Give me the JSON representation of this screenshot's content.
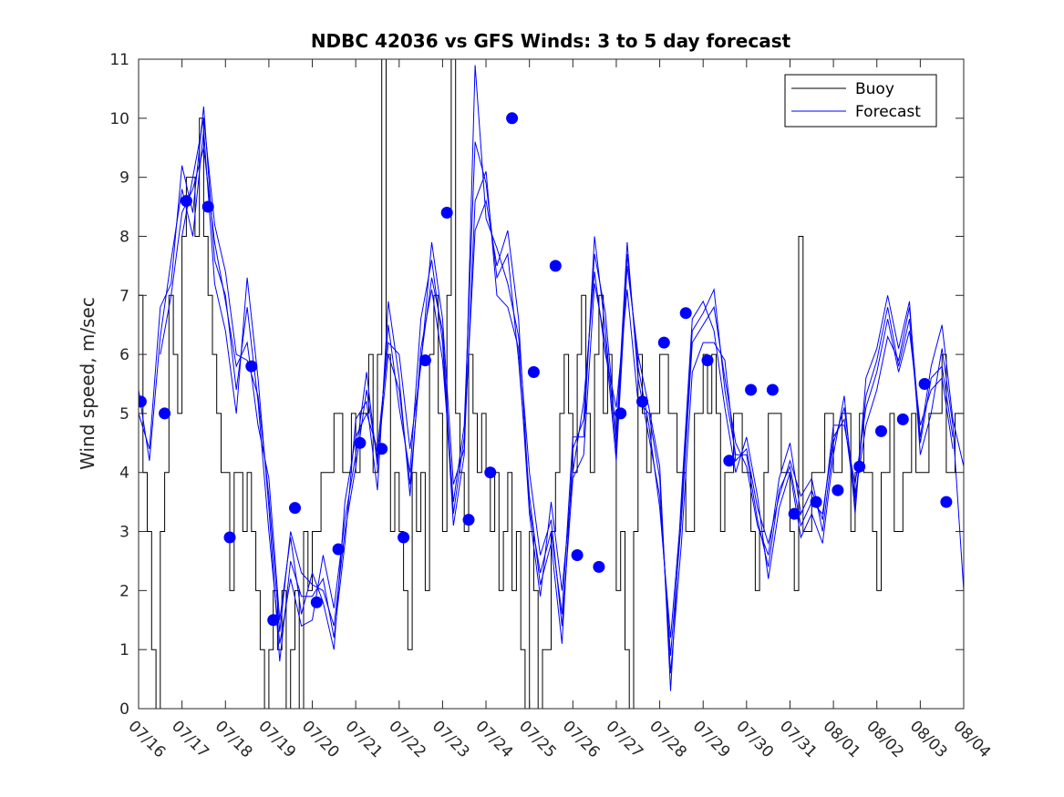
{
  "chart_data": {
    "type": "line",
    "title": "NDBC 42036 vs GFS Winds: 3 to 5 day forecast",
    "xlabel": "",
    "ylabel": "Wind speed, m/sec",
    "ylim": [
      0,
      11
    ],
    "xlim": [
      "07/16",
      "08/04"
    ],
    "grid": false,
    "legend_position": "top-right",
    "x_tick_labels": [
      "07/16",
      "07/17",
      "07/18",
      "07/19",
      "07/20",
      "07/21",
      "07/22",
      "07/23",
      "07/24",
      "07/25",
      "07/26",
      "07/27",
      "07/28",
      "07/29",
      "07/30",
      "07/31",
      "08/01",
      "08/02",
      "08/03",
      "08/04"
    ],
    "y_ticks": [
      0,
      1,
      2,
      3,
      4,
      5,
      6,
      7,
      8,
      9,
      10,
      11
    ],
    "colors": {
      "buoy": "#000000",
      "forecast": "#0000ff",
      "markers": "#0000ff"
    },
    "legend": [
      {
        "label": "Buoy",
        "color": "#000000"
      },
      {
        "label": "Forecast",
        "color": "#0000ff"
      }
    ],
    "buoy": {
      "name": "Buoy",
      "x_days": [
        0.0,
        0.1,
        0.2,
        0.3,
        0.4,
        0.5,
        0.6,
        0.7,
        0.8,
        0.9,
        1.0,
        1.1,
        1.2,
        1.3,
        1.4,
        1.5,
        1.6,
        1.7,
        1.8,
        1.9,
        2.0,
        2.1,
        2.2,
        2.3,
        2.4,
        2.5,
        2.6,
        2.7,
        2.8,
        2.9,
        3.0,
        3.1,
        3.2,
        3.3,
        3.4,
        3.5,
        3.6,
        3.7,
        3.8,
        3.9,
        4.0,
        4.1,
        4.2,
        4.3,
        4.4,
        4.5,
        4.6,
        4.7,
        4.8,
        4.9,
        5.0,
        5.1,
        5.2,
        5.3,
        5.4,
        5.5,
        5.6,
        5.7,
        5.8,
        5.9,
        6.0,
        6.1,
        6.2,
        6.3,
        6.4,
        6.5,
        6.6,
        6.7,
        6.8,
        6.9,
        7.0,
        7.1,
        7.2,
        7.3,
        7.4,
        7.5,
        7.6,
        7.7,
        7.8,
        7.9,
        8.0,
        8.1,
        8.2,
        8.3,
        8.4,
        8.5,
        8.6,
        8.7,
        8.8,
        8.9,
        9.0,
        9.1,
        9.2,
        9.3,
        9.4,
        9.5,
        9.6,
        9.7,
        9.8,
        9.9,
        10.0,
        10.1,
        10.2,
        10.3,
        10.4,
        10.5,
        10.6,
        10.7,
        10.8,
        10.9,
        11.0,
        11.1,
        11.2,
        11.3,
        11.4,
        11.5,
        11.6,
        11.7,
        11.8,
        11.9,
        12.0,
        12.1,
        12.2,
        12.3,
        12.4,
        12.5,
        12.6,
        12.7,
        12.8,
        12.9,
        13.0,
        13.1,
        13.2,
        13.3,
        13.4,
        13.5,
        13.6,
        13.7,
        13.8,
        13.9,
        14.0,
        14.1,
        14.2,
        14.3,
        14.4,
        14.5,
        14.6,
        14.7,
        14.8,
        14.9,
        15.0,
        15.1,
        15.2,
        15.3,
        15.4,
        15.5,
        15.6,
        15.7,
        15.8,
        15.9,
        16.0,
        16.1,
        16.2,
        16.3,
        16.4,
        16.5,
        16.6,
        16.7,
        16.8,
        16.9,
        17.0,
        17.1,
        17.2,
        17.3,
        17.4,
        17.5,
        17.6,
        17.7,
        17.8,
        17.9,
        18.0,
        18.1,
        18.2,
        18.3,
        18.4,
        18.5,
        18.6,
        18.7,
        18.8,
        18.9,
        19.0
      ],
      "values": [
        7,
        4,
        3,
        1,
        0,
        3,
        4,
        7,
        6,
        5,
        8,
        9,
        9,
        8,
        10,
        8,
        7,
        6,
        5,
        4,
        4,
        2,
        4,
        4,
        3,
        4,
        3,
        2,
        1,
        0,
        1,
        2,
        1,
        2,
        0,
        1,
        2,
        0,
        3,
        2,
        3,
        3,
        4,
        4,
        4,
        5,
        5,
        4,
        4,
        5,
        4,
        5,
        5,
        6,
        4,
        6,
        11,
        6,
        3,
        4,
        3,
        2,
        1,
        4,
        3,
        4,
        2,
        6,
        7,
        5,
        3,
        7,
        11,
        5,
        4,
        3,
        6,
        5,
        4,
        5,
        4,
        3,
        4,
        2,
        3,
        4,
        2,
        3,
        1,
        0,
        3,
        2,
        0,
        1,
        1,
        3,
        4,
        5,
        6,
        5,
        4,
        6,
        7,
        5,
        4,
        6,
        7,
        5,
        6,
        5,
        2,
        3,
        1,
        0,
        3,
        6,
        5,
        4,
        5,
        5,
        6,
        6,
        5,
        5,
        4,
        4,
        3,
        3,
        5,
        5,
        6,
        5,
        6,
        5,
        3,
        4,
        4,
        5,
        5,
        4,
        4,
        3,
        2,
        3,
        4,
        5,
        5,
        5,
        4,
        4,
        3,
        2,
        8,
        3,
        3,
        4,
        4,
        4,
        5,
        5,
        4,
        4,
        5,
        5,
        3,
        4,
        5,
        4,
        4,
        3,
        2,
        4,
        4,
        5,
        3,
        3,
        4,
        4,
        5,
        4,
        4,
        4,
        5,
        5,
        5,
        6,
        4,
        4,
        5,
        5,
        4
      ]
    },
    "forecast_series": [
      {
        "x_days": [
          0.0,
          0.25,
          0.5,
          0.75,
          1.0,
          1.25,
          1.5,
          1.75,
          2.0,
          2.25,
          2.5,
          2.75,
          3.0,
          3.25,
          3.5,
          3.75,
          4.0,
          4.25,
          4.5,
          4.75,
          5.0,
          5.25,
          5.5,
          5.75,
          6.0,
          6.25,
          6.5,
          6.75,
          7.0,
          7.25,
          7.5,
          7.75,
          8.0,
          8.25,
          8.5,
          8.75,
          9.0,
          9.25,
          9.5,
          9.75,
          10.0,
          10.25,
          10.5,
          10.75,
          11.0,
          11.25,
          11.5,
          11.75,
          12.0,
          12.25,
          12.5,
          12.75,
          13.0,
          13.25,
          13.5,
          13.75,
          14.0,
          14.25,
          14.5,
          14.75,
          15.0,
          15.25,
          15.5,
          15.75,
          16.0,
          16.25,
          16.5,
          16.75,
          17.0,
          17.25,
          17.5,
          17.75,
          18.0,
          18.25,
          18.5,
          18.75,
          19.0
        ],
        "values": [
          5.0,
          4.4,
          6.8,
          7.2,
          9.2,
          8.4,
          10.2,
          7.6,
          7.0,
          5.4,
          6.8,
          5.2,
          3.0,
          1.1,
          2.2,
          1.4,
          1.5,
          2.6,
          1.7,
          3.2,
          4.3,
          5.7,
          4.1,
          6.5,
          5.1,
          4.0,
          6.6,
          7.6,
          6.2,
          3.1,
          4.3,
          10.9,
          8.3,
          7.8,
          7.2,
          6.3,
          4.0,
          2.6,
          3.2,
          1.4,
          3.9,
          4.3,
          7.2,
          6.2,
          4.2,
          7.5,
          6.0,
          5.1,
          4.1,
          0.3,
          3.6,
          6.6,
          6.9,
          6.4,
          5.1,
          4.0,
          4.6,
          3.6,
          2.2,
          3.4,
          4.0,
          2.9,
          3.3,
          2.8,
          4.3,
          5.3,
          3.3,
          5.6,
          6.1,
          7.0,
          6.1,
          6.9,
          4.3,
          5.0,
          6.1,
          4.8,
          2.0
        ]
      },
      {
        "x_days": [
          0.0,
          0.25,
          0.5,
          0.75,
          1.0,
          1.25,
          1.5,
          1.75,
          2.0,
          2.25,
          2.5,
          2.75,
          3.0,
          3.25,
          3.5,
          3.75,
          4.0,
          4.25,
          4.5,
          4.75,
          5.0,
          5.25,
          5.5,
          5.75,
          6.0,
          6.25,
          6.5,
          6.75,
          7.0,
          7.25,
          7.5,
          7.75,
          8.0,
          8.25,
          8.5,
          8.75,
          9.0,
          9.25,
          9.5,
          9.75,
          10.0,
          10.25,
          10.5,
          10.75,
          11.0,
          11.25,
          11.5,
          11.75,
          12.0,
          12.25,
          12.5,
          12.75,
          13.0,
          13.25,
          13.5,
          13.75,
          14.0,
          14.25,
          14.5,
          14.75,
          15.0,
          15.25,
          15.5,
          15.75,
          16.0,
          16.25,
          16.5,
          16.75,
          17.0,
          17.25,
          17.5,
          17.75,
          18.0,
          18.25,
          18.5,
          18.75
        ],
        "values": [
          5.4,
          4.2,
          6.3,
          7.6,
          8.8,
          8.0,
          9.8,
          7.2,
          6.4,
          5.0,
          7.3,
          5.6,
          3.4,
          0.8,
          2.5,
          1.9,
          1.9,
          2.2,
          1.2,
          2.8,
          4.9,
          5.2,
          3.7,
          6.9,
          5.6,
          3.6,
          6.1,
          7.1,
          5.9,
          3.5,
          4.8,
          9.6,
          8.9,
          7.3,
          7.7,
          5.9,
          3.6,
          2.1,
          2.8,
          1.1,
          4.4,
          4.9,
          7.7,
          6.7,
          4.6,
          7.9,
          5.6,
          4.6,
          3.6,
          0.9,
          3.2,
          6.2,
          6.5,
          6.8,
          5.6,
          4.5,
          4.1,
          3.1,
          2.6,
          3.9,
          4.5,
          3.3,
          3.7,
          3.2,
          4.8,
          4.8,
          3.8,
          5.1,
          5.7,
          6.6,
          5.7,
          6.4,
          4.8,
          5.4,
          5.6,
          4.4
        ]
      },
      {
        "x_days": [
          0.5,
          0.75,
          1.0,
          1.25,
          1.5,
          1.75,
          2.0,
          2.25,
          2.5,
          2.75,
          3.0,
          3.25,
          3.5,
          3.75,
          4.0,
          4.25,
          4.5,
          4.75,
          5.0,
          5.25,
          5.5,
          5.75,
          6.0,
          6.25,
          6.5,
          6.75,
          7.0,
          7.25,
          7.5,
          7.75,
          8.0,
          8.25,
          8.5,
          8.75,
          9.0,
          9.25,
          9.5,
          9.75,
          10.0,
          10.25,
          10.5,
          10.75,
          11.0,
          11.25,
          11.5,
          11.75,
          12.0,
          12.25,
          12.5,
          12.75,
          13.0,
          13.25,
          13.5,
          13.75,
          14.0,
          14.25,
          14.5,
          14.75,
          15.0,
          15.25,
          15.5,
          15.75,
          16.0,
          16.25,
          16.5,
          16.75,
          17.0,
          17.25,
          17.5,
          17.75,
          18.0,
          18.25,
          18.5,
          18.75,
          19.0
        ],
        "values": [
          6.0,
          7.0,
          8.4,
          8.8,
          9.5,
          7.9,
          6.9,
          5.8,
          6.2,
          4.8,
          3.9,
          1.5,
          2.9,
          1.6,
          2.3,
          1.8,
          1.0,
          3.5,
          4.6,
          5.0,
          4.4,
          6.2,
          6.0,
          4.4,
          5.8,
          7.9,
          6.6,
          3.8,
          4.4,
          8.6,
          9.1,
          7.0,
          6.8,
          6.1,
          3.3,
          1.9,
          3.5,
          2.0,
          4.0,
          5.2,
          7.4,
          6.0,
          5.1,
          7.1,
          5.2,
          5.0,
          3.9,
          0.6,
          2.8,
          5.7,
          6.2,
          6.2,
          5.9,
          4.2,
          4.4,
          3.4,
          2.8,
          3.6,
          4.2,
          3.6,
          3.9,
          3.0,
          4.5,
          5.1,
          3.6,
          4.8,
          5.4,
          6.3,
          5.9,
          6.8,
          4.6,
          5.8,
          6.5,
          4.9,
          4.1
        ]
      },
      {
        "x_days": [
          1.0,
          1.25,
          1.5,
          1.75,
          2.0,
          2.25,
          2.5,
          2.75,
          3.0,
          3.25,
          3.5,
          3.75,
          4.0,
          4.25,
          4.5,
          4.75,
          5.0,
          5.25,
          5.5,
          5.75,
          6.0,
          6.25,
          6.5,
          6.75,
          7.0,
          7.25,
          7.5,
          7.75,
          8.0,
          8.25,
          8.5,
          8.75,
          9.0,
          9.25,
          9.5,
          9.75,
          10.0,
          10.25,
          10.5,
          10.75,
          11.0,
          11.25,
          11.5,
          11.75,
          12.0,
          12.25,
          12.5,
          12.75,
          13.0,
          13.25,
          13.5,
          13.75,
          14.0,
          14.25,
          14.5,
          14.75,
          15.0,
          15.25,
          15.5,
          15.75,
          16.0,
          16.25,
          16.5,
          16.75,
          17.0,
          17.25,
          17.5,
          17.75,
          18.0,
          18.25,
          18.5,
          18.75
        ],
        "values": [
          8.0,
          9.0,
          10.0,
          8.2,
          7.4,
          6.0,
          5.9,
          5.3,
          3.6,
          1.3,
          3.0,
          2.3,
          2.1,
          2.0,
          1.4,
          3.0,
          4.1,
          5.4,
          4.2,
          6.0,
          5.4,
          3.8,
          5.9,
          7.3,
          6.4,
          3.3,
          4.6,
          8.1,
          8.6,
          7.5,
          8.1,
          6.6,
          3.4,
          2.3,
          3.0,
          1.6,
          4.6,
          4.6,
          8.0,
          6.4,
          4.4,
          7.7,
          5.8,
          4.8,
          3.4,
          1.2,
          3.4,
          6.4,
          6.7,
          7.1,
          5.4,
          4.3,
          4.3,
          3.2,
          2.4,
          3.7,
          4.1,
          3.1,
          3.5,
          3.3,
          4.6,
          4.9,
          3.5,
          5.3,
          5.9,
          6.8,
          5.8,
          6.6,
          4.5,
          5.6,
          5.8,
          4.6
        ]
      }
    ],
    "forecast_markers": {
      "x_days": [
        0.05,
        0.6,
        1.1,
        1.6,
        2.1,
        2.6,
        3.1,
        3.6,
        4.1,
        4.6,
        5.1,
        5.6,
        6.1,
        6.6,
        7.1,
        7.6,
        8.1,
        8.6,
        9.1,
        9.6,
        10.1,
        10.6,
        11.1,
        11.6,
        12.1,
        12.6,
        13.1,
        13.6,
        14.1,
        14.6,
        15.1,
        15.6,
        16.1,
        16.6,
        17.1,
        17.6,
        18.1,
        18.6
      ],
      "values": [
        5.2,
        5.0,
        8.6,
        8.5,
        2.9,
        5.8,
        1.5,
        3.4,
        1.8,
        2.7,
        4.5,
        4.4,
        2.9,
        5.9,
        8.4,
        3.2,
        4.0,
        10.0,
        5.7,
        7.5,
        2.6,
        2.4,
        5.0,
        5.2,
        6.2,
        6.7,
        5.9,
        4.2,
        5.4,
        5.4,
        3.3,
        3.5,
        3.7,
        4.1,
        4.7,
        4.9,
        5.5,
        3.5
      ]
    }
  }
}
